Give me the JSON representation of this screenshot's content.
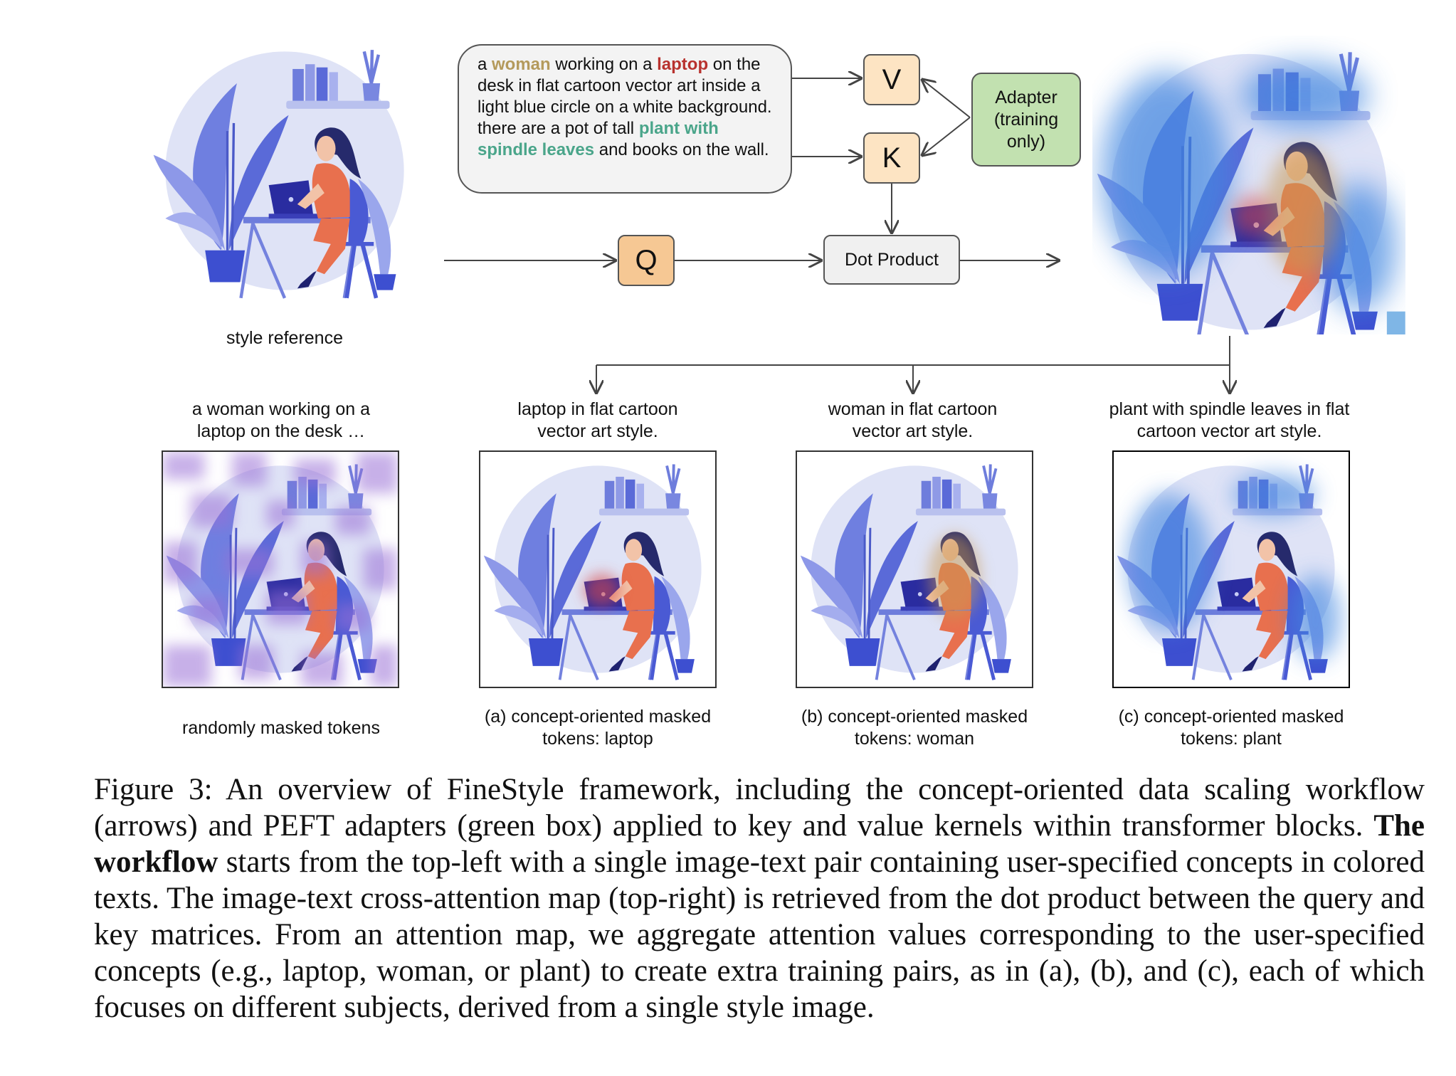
{
  "prompt": {
    "part1": "a ",
    "woman": "woman",
    "part2": " working on a ",
    "laptop": "laptop",
    "part3": " on the desk in flat cartoon vector art inside a light blue circle on a white background. there are a pot of tall ",
    "plant": "plant with spindle leaves",
    "part4": " and books on the wall."
  },
  "nodes": {
    "v": "V",
    "k": "K",
    "q": "Q",
    "dot_product": "Dot Product",
    "adapter": "Adapter (training only)"
  },
  "labels": {
    "style_reference": "style reference",
    "random_top": "a woman working on a laptop on the desk …",
    "random_bottom": "randomly masked tokens",
    "laptop_top": "laptop in flat cartoon vector art style.",
    "laptop_bottom": "(a) concept-oriented masked tokens: laptop",
    "woman_top": "woman in flat cartoon vector art style.",
    "woman_bottom": "(b) concept-oriented masked tokens: woman",
    "plant_top": "plant with spindle leaves in flat cartoon vector art style.",
    "plant_bottom": "(c) concept-oriented masked tokens: plant"
  },
  "caption": {
    "lead": "Figure 3: An overview of FineStyle framework, including the concept-oriented data scaling workflow (arrows) and PEFT adapters (green box) applied to key and value kernels within transformer blocks. ",
    "bold": "The workflow",
    "rest": " starts from the top-left with a single image-text pair containing user-specified concepts in colored texts. The image-text cross-attention map (top-right) is retrieved from the dot product between the query and key matrices. From an attention map, we aggregate attention values corresponding to the user-specified concepts (e.g., laptop, woman, or plant) to create extra training pairs, as in (a), (b), and (c), each of which focuses on different subjects, derived from a single style image."
  },
  "colors": {
    "woman_highlight": "#b49a5c",
    "laptop_highlight": "#b8322e",
    "plant_highlight": "#4aa58a",
    "kv_node": "#fde4c3",
    "q_node": "#f6c894",
    "adapter_node": "#c2e1b0",
    "illustration_blue": "#5a6ad8",
    "shirt": "#e8704e"
  }
}
